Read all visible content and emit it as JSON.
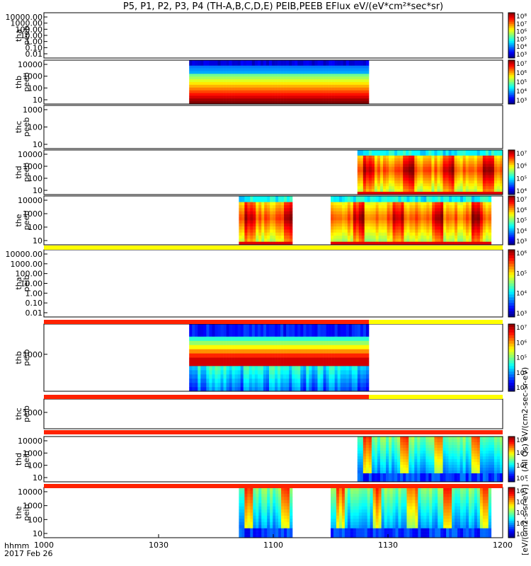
{
  "title": "P5, P1, P2, P3, P4 (TH-A,B,C,D,E) PEIB,PEEB EFlux eV/(eV*cm²*sec*sr)",
  "colors": {
    "bar_red": "#ff2200",
    "bar_yellow": "#ffff00",
    "gap": "#ffffff",
    "frame": "#000000"
  },
  "chart_data": {
    "type": "heatmap",
    "x_axis": {
      "label_top": "hhmm",
      "label_bottom": "2017 Feb 26",
      "range": [
        "10:00",
        "12:00"
      ],
      "ticks": [
        "1000",
        "1030",
        "1100",
        "1130",
        "1200"
      ]
    },
    "colorbar_label": "[eV/(cm2-s-sr-eV)] ... (All Qs) eV/(cm2-sec-sr-eV)",
    "panels": [
      {
        "id": "tha_peeb",
        "ylabel": [
          "tha",
          "peeb"
        ],
        "yscale": "log",
        "yticks": [
          "10000.00",
          "1000.00",
          "100.00",
          "10.00",
          "1.00",
          "0.10",
          "0.01"
        ],
        "cbar_ticks": [
          "10⁸",
          "10⁷",
          "10⁶",
          "10⁵",
          "10⁴",
          "10³"
        ],
        "data_intervals": [],
        "pattern": "none"
      },
      {
        "id": "thb_peeb",
        "ylabel": [
          "thb",
          "peeb"
        ],
        "yscale": "log",
        "yticks": [
          "10000",
          "1000",
          "100",
          "10"
        ],
        "cbar_ticks": [
          "10⁷",
          "10⁶",
          "10⁵",
          "10⁴",
          "10³"
        ],
        "data_intervals": [
          [
            "10:38",
            "11:25"
          ]
        ],
        "pattern": "bands"
      },
      {
        "id": "thc_peeb",
        "ylabel": [
          "thc",
          "peeb"
        ],
        "yscale": "log",
        "yticks": [
          "1000",
          "100",
          "10"
        ],
        "cbar_ticks": [],
        "data_intervals": [],
        "pattern": "none"
      },
      {
        "id": "thd_peeb",
        "ylabel": [
          "thd",
          "peeb"
        ],
        "yscale": "log",
        "yticks": [
          "10000",
          "1000",
          "100",
          "10"
        ],
        "cbar_ticks": [
          "10⁷",
          "10⁶",
          "10⁵",
          "10⁴"
        ],
        "data_intervals": [
          [
            "11:22",
            "12:00"
          ]
        ],
        "pattern": "electron"
      },
      {
        "id": "the_peeb",
        "ylabel": [
          "the",
          "peeb"
        ],
        "yscale": "log",
        "yticks": [
          "10000",
          "1000",
          "100",
          "10"
        ],
        "cbar_ticks": [
          "10⁷",
          "10⁶",
          "10⁵",
          "10⁴",
          "10³"
        ],
        "data_intervals": [
          [
            "10:51",
            "11:05"
          ],
          [
            "11:15",
            "11:57"
          ]
        ],
        "pattern": "electron"
      },
      {
        "id": "tha_peib",
        "ylabel": [
          "tha",
          "peib"
        ],
        "yscale": "log",
        "yticks": [
          "10000.00",
          "1000.00",
          "100.00",
          "10.00",
          "1.00",
          "0.10",
          "0.01"
        ],
        "cbar_ticks": [
          "10⁶",
          "10⁵",
          "10⁴",
          "10³"
        ],
        "data_intervals": [],
        "pattern": "none"
      },
      {
        "id": "thb_peib",
        "ylabel": [
          "thb",
          "peib"
        ],
        "yscale": "log",
        "yticks": [
          "1000"
        ],
        "cbar_ticks": [
          "10⁷",
          "10⁶",
          "10⁵",
          "10⁴",
          "10³"
        ],
        "data_intervals": [
          [
            "10:38",
            "11:25"
          ]
        ],
        "pattern": "ion"
      },
      {
        "id": "thc_peib",
        "ylabel": [
          "thc",
          "peib"
        ],
        "yscale": "log",
        "yticks": [
          "1000"
        ],
        "cbar_ticks": [],
        "data_intervals": [],
        "pattern": "none"
      },
      {
        "id": "thd_peib",
        "ylabel": [
          "thd",
          "peib"
        ],
        "yscale": "log",
        "yticks": [
          "10000",
          "1000",
          "100",
          "10"
        ],
        "cbar_ticks": [
          "10⁶",
          "10⁵",
          "10⁴",
          "10³"
        ],
        "data_intervals": [
          [
            "11:22",
            "12:00"
          ]
        ],
        "pattern": "ionhot"
      },
      {
        "id": "the_peib",
        "ylabel": [
          "the",
          "peib"
        ],
        "yscale": "log",
        "yticks": [
          "10000",
          "1000",
          "100",
          "10"
        ],
        "cbar_ticks": [
          "10⁷",
          "10⁶",
          "10⁵",
          "10⁴",
          "10³"
        ],
        "data_intervals": [
          [
            "10:51",
            "11:05"
          ],
          [
            "11:15",
            "11:57"
          ]
        ],
        "pattern": "ionhot"
      }
    ],
    "status_bars": [
      {
        "after_panel": "the_peeb",
        "segments": [
          [
            "10:00",
            "12:00",
            "yellow"
          ]
        ]
      },
      {
        "after_panel": "tha_peib",
        "segments": [
          [
            "10:00",
            "11:25",
            "red"
          ],
          [
            "11:25",
            "12:00",
            "yellow"
          ]
        ]
      },
      {
        "after_panel": "thb_peib",
        "segments": [
          [
            "10:00",
            "11:25",
            "red"
          ],
          [
            "11:25",
            "12:00",
            "yellow"
          ]
        ]
      },
      {
        "after_panel": "thc_peib",
        "segments": [
          [
            "10:00",
            "12:00",
            "red"
          ]
        ]
      },
      {
        "after_panel": "thd_peib",
        "segments": [
          [
            "10:00",
            "12:00",
            "red"
          ]
        ]
      }
    ]
  }
}
